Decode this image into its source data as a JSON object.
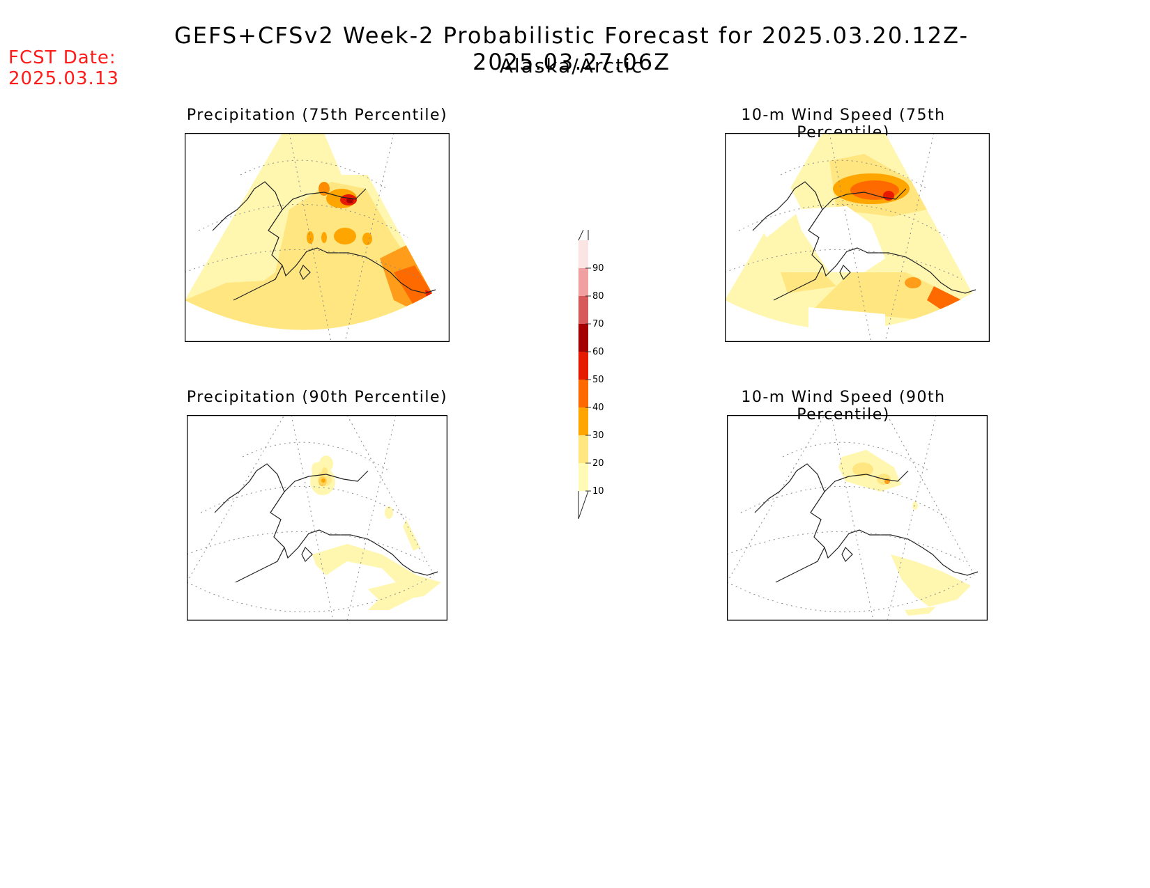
{
  "header": {
    "title": "GEFS+CFSv2 Week-2 Probabilistic Forecast for 2025.03.20.12Z-2025.03.27.06Z",
    "subtitle": "Alaska/Arctic",
    "fcst_label": "FCST Date:",
    "fcst_date": "2025.03.13"
  },
  "panels": [
    {
      "id": "precip75",
      "title": "Precipitation (75th Percentile)"
    },
    {
      "id": "wind75",
      "title": "10-m Wind Speed (75th Percentile)"
    },
    {
      "id": "precip90",
      "title": "Precipitation (90th Percentile)"
    },
    {
      "id": "wind90",
      "title": "10-m Wind Speed (90th Percentile)"
    }
  ],
  "legend": {
    "levels": [
      "10",
      "20",
      "30",
      "40",
      "50",
      "60",
      "70",
      "80",
      "90"
    ],
    "colors": [
      "#fffab5",
      "#ffe680",
      "#ffa500",
      "#ff6a00",
      "#e61a00",
      "#a50000",
      "#d65a5a",
      "#f0a0a0",
      "#fbe4e4"
    ]
  }
}
